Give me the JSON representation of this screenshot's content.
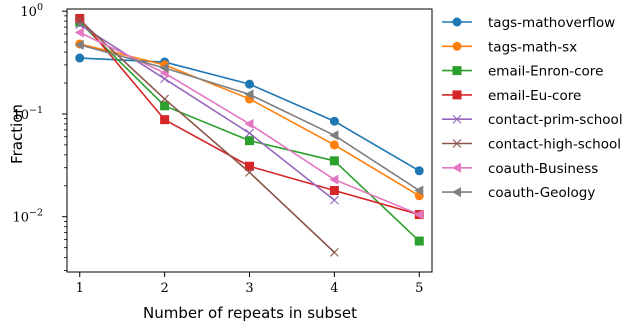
{
  "chart_data": {
    "type": "line",
    "title": "",
    "xlabel": "Number of repeats in subset",
    "ylabel": "Fraction",
    "yscale": "log",
    "xlim": [
      0.85,
      5.15
    ],
    "ylim": [
      0.0029,
      1.05
    ],
    "x_ticks": [
      1,
      2,
      3,
      4,
      5
    ],
    "x_tick_labels": [
      "1",
      "2",
      "3",
      "4",
      "5"
    ],
    "y_ticks": [
      1,
      0.1,
      0.01
    ],
    "y_tick_labels": [
      {
        "base": "10",
        "exp": "0"
      },
      {
        "base": "10",
        "exp": "−1"
      },
      {
        "base": "10",
        "exp": "−2"
      }
    ],
    "grid": false,
    "legend_position": "outside-right",
    "series": [
      {
        "name": "tags-mathoverflow",
        "color": "#1f77b4",
        "marker": "circle",
        "x": [
          1,
          2,
          3,
          4,
          5
        ],
        "y": [
          0.35,
          0.32,
          0.195,
          0.085,
          0.028
        ]
      },
      {
        "name": "tags-math-sx",
        "color": "#ff7f0e",
        "marker": "circle",
        "x": [
          1,
          2,
          3,
          4,
          5
        ],
        "y": [
          0.48,
          0.3,
          0.14,
          0.05,
          0.016
        ]
      },
      {
        "name": "email-Enron-core",
        "color": "#2ca02c",
        "marker": "square",
        "x": [
          1,
          2,
          3,
          4,
          5
        ],
        "y": [
          0.78,
          0.12,
          0.055,
          0.035,
          0.0058
        ]
      },
      {
        "name": "email-Eu-core",
        "color": "#d62728",
        "marker": "square",
        "x": [
          1,
          2,
          3,
          4,
          5
        ],
        "y": [
          0.85,
          0.088,
          0.031,
          0.018,
          0.0105
        ]
      },
      {
        "name": "contact-prim-school",
        "color": "#9467bd",
        "marker": "x",
        "x": [
          1,
          2,
          3,
          4
        ],
        "y": [
          0.74,
          0.22,
          0.065,
          0.0145
        ]
      },
      {
        "name": "contact-high-school",
        "color": "#8c564b",
        "marker": "x",
        "x": [
          1,
          2,
          3,
          4
        ],
        "y": [
          0.82,
          0.14,
          0.027,
          0.0045
        ]
      },
      {
        "name": "coauth-Business",
        "color": "#e377c2",
        "marker": "triangle-left",
        "x": [
          1,
          2,
          3,
          4,
          5
        ],
        "y": [
          0.62,
          0.25,
          0.08,
          0.023,
          0.0105
        ]
      },
      {
        "name": "coauth-Geology",
        "color": "#7f7f7f",
        "marker": "triangle-left",
        "x": [
          1,
          2,
          3,
          4,
          5
        ],
        "y": [
          0.47,
          0.28,
          0.155,
          0.062,
          0.018
        ]
      }
    ]
  }
}
